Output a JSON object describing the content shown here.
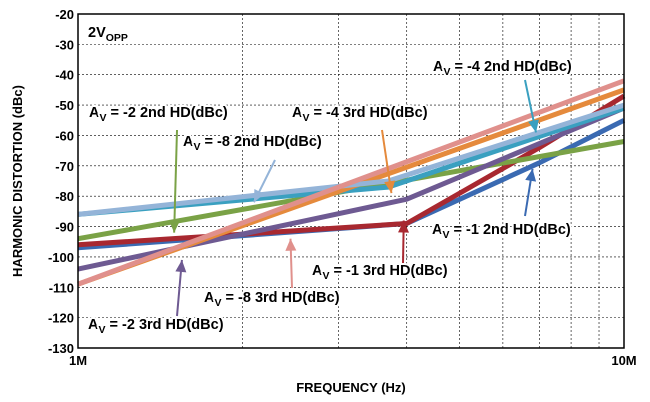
{
  "chart_data": {
    "type": "line",
    "xlabel": "FREQUENCY (Hz)",
    "ylabel": "HARMONIC DISTORTION (dBc)",
    "x_scale": "log",
    "xlim": [
      1000000,
      10000000
    ],
    "ylim": [
      -130,
      -20
    ],
    "x_ticks": [
      {
        "value": 1000000,
        "label": "1M"
      },
      {
        "value": 10000000,
        "label": "10M"
      }
    ],
    "y_ticks": [
      -20,
      -30,
      -40,
      -50,
      -60,
      -70,
      -80,
      -90,
      -100,
      -110,
      -120,
      -130
    ],
    "grid": true,
    "condition_label": {
      "main": "2V",
      "sub": "OPP"
    },
    "series": [
      {
        "name": "AV = -1 2nd HD(dBc)",
        "color": "#3a6ab2",
        "x": [
          1000000,
          4000000,
          7000000,
          10000000
        ],
        "y": [
          -97,
          -89,
          -69,
          -55
        ]
      },
      {
        "name": "AV = -1 3rd HD(dBc)",
        "color": "#a82830",
        "x": [
          1000000,
          4000000,
          7000000,
          10000000
        ],
        "y": [
          -96,
          -89,
          -64,
          -47
        ]
      },
      {
        "name": "AV = -2 2nd HD(dBc)",
        "color": "#7aa246",
        "x": [
          1000000,
          10000000
        ],
        "y": [
          -94,
          -62
        ]
      },
      {
        "name": "AV = -2 3rd HD(dBc)",
        "color": "#6e5a92",
        "x": [
          1000000,
          4000000,
          10000000
        ],
        "y": [
          -104,
          -81,
          -51
        ]
      },
      {
        "name": "AV = -4 2nd HD(dBc)",
        "color": "#3aa0c0",
        "x": [
          1000000,
          3700000,
          10000000
        ],
        "y": [
          -86,
          -77,
          -51
        ]
      },
      {
        "name": "AV = -4 3rd HD(dBc)",
        "color": "#e58a3c",
        "x": [
          1000000,
          10000000
        ],
        "y": [
          -109,
          -45
        ]
      },
      {
        "name": "AV = -8 2nd HD(dBc)",
        "color": "#94b4d8",
        "x": [
          1000000,
          3700000,
          10000000
        ],
        "y": [
          -86,
          -75,
          -50
        ]
      },
      {
        "name": "AV = -8 3rd HD(dBc)",
        "color": "#e0908c",
        "x": [
          1000000,
          10000000
        ],
        "y": [
          -109,
          -42
        ]
      }
    ],
    "annotations": [
      {
        "main": "A",
        "sub": "V",
        "rest": " = -4 2nd HD(dBc)",
        "arrow_color": "#3aa0c0",
        "arrow_tip": [
          6900000,
          -59
        ]
      },
      {
        "main": "A",
        "sub": "V",
        "rest": " = -2 2nd HD(dBc)",
        "arrow_color": "#7aa246",
        "arrow_tip": [
          1500000,
          -92
        ]
      },
      {
        "main": "A",
        "sub": "V",
        "rest": " = -4 3rd HD(dBc)",
        "arrow_color": "#e58a3c",
        "arrow_tip": [
          3750000,
          -79
        ]
      },
      {
        "main": "A",
        "sub": "V",
        "rest": " = -8 2nd HD(dBc)",
        "arrow_color": "#94b4d8",
        "arrow_tip": [
          2100000,
          -82
        ]
      },
      {
        "main": "A",
        "sub": "V",
        "rest": " = -1 2nd HD(dBc)",
        "arrow_color": "#3a6ab2",
        "arrow_tip": [
          6800000,
          -71
        ]
      },
      {
        "main": "A",
        "sub": "V",
        "rest": " = -1 3rd HD(dBc)",
        "arrow_color": "#a82830",
        "arrow_tip": [
          3950000,
          -88
        ]
      },
      {
        "main": "A",
        "sub": "V",
        "rest": " = -8 3rd HD(dBc)",
        "arrow_color": "#e0908c",
        "arrow_tip": [
          2450000,
          -94
        ]
      },
      {
        "main": "A",
        "sub": "V",
        "rest": " = -2 3rd HD(dBc)",
        "arrow_color": "#6e5a92",
        "arrow_tip": [
          1550000,
          -101
        ]
      }
    ]
  }
}
